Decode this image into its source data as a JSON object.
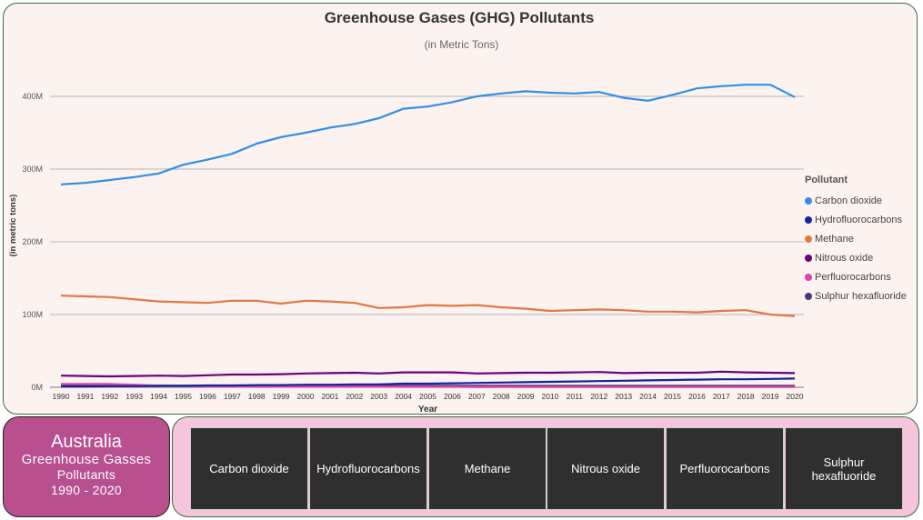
{
  "chart": {
    "title": "Greenhouse Gases (GHG) Pollutants",
    "subtitle": "(in Metric Tons)"
  },
  "chart_data": {
    "type": "line",
    "title": "Greenhouse Gases (GHG) Pollutants",
    "subtitle": "(in Metric Tons)",
    "xlabel": "Year",
    "ylabel": "(in metric tons)",
    "ylim": [
      0,
      420000000
    ],
    "yticks": [
      0,
      100000000,
      200000000,
      300000000,
      400000000
    ],
    "ytick_labels": [
      "0M",
      "100M",
      "200M",
      "300M",
      "400M"
    ],
    "grid": true,
    "legend_title": "Pollutant",
    "legend_position": "right",
    "x": [
      1990,
      1991,
      1992,
      1993,
      1994,
      1995,
      1996,
      1997,
      1998,
      1999,
      2000,
      2001,
      2002,
      2003,
      2004,
      2005,
      2006,
      2007,
      2008,
      2009,
      2010,
      2011,
      2012,
      2013,
      2014,
      2015,
      2016,
      2017,
      2018,
      2019,
      2020
    ],
    "series": [
      {
        "name": "Carbon dioxide",
        "color": "#2f8fe6",
        "values": [
          279000000,
          281000000,
          285000000,
          289000000,
          294000000,
          306000000,
          313000000,
          321000000,
          335000000,
          344000000,
          350000000,
          357000000,
          362000000,
          370000000,
          383000000,
          386000000,
          392000000,
          400000000,
          404000000,
          407000000,
          405000000,
          404000000,
          406000000,
          398000000,
          394000000,
          402000000,
          411000000,
          414000000,
          416000000,
          416000000,
          399000000
        ]
      },
      {
        "name": "Hydrofluorocarbons",
        "color": "#12239e",
        "values": [
          1000000,
          1000000,
          1500000,
          1500000,
          2000000,
          2000000,
          2500000,
          2500000,
          3000000,
          3000000,
          3500000,
          3500000,
          4000000,
          4000000,
          5000000,
          5000000,
          5500000,
          6000000,
          6500000,
          7000000,
          7500000,
          8000000,
          8500000,
          9000000,
          9500000,
          10000000,
          10500000,
          11000000,
          11000000,
          11500000,
          12000000
        ]
      },
      {
        "name": "Methane",
        "color": "#e0783f",
        "values": [
          126000000,
          125000000,
          124000000,
          121000000,
          118000000,
          117000000,
          116000000,
          119000000,
          119000000,
          115000000,
          119000000,
          118000000,
          116000000,
          109000000,
          110000000,
          113000000,
          112000000,
          113000000,
          110000000,
          108000000,
          105000000,
          106000000,
          107000000,
          106000000,
          104000000,
          104000000,
          103000000,
          105000000,
          106000000,
          100000000,
          98000000
        ]
      },
      {
        "name": "Nitrous oxide",
        "color": "#6b007b",
        "values": [
          16000000,
          15500000,
          15000000,
          15500000,
          16000000,
          15500000,
          16500000,
          17500000,
          17500000,
          18000000,
          19000000,
          19500000,
          20000000,
          19000000,
          20500000,
          20500000,
          20500000,
          19000000,
          19500000,
          20000000,
          20000000,
          20500000,
          21000000,
          19500000,
          20000000,
          20000000,
          20000000,
          21500000,
          20500000,
          20000000,
          19500000
        ]
      },
      {
        "name": "Perfluorocarbons",
        "color": "#e044a7",
        "values": [
          4500000,
          4500000,
          4500000,
          3500000,
          2000000,
          1500000,
          1000000,
          1000000,
          1000000,
          800000,
          800000,
          800000,
          800000,
          700000,
          600000,
          600000,
          600000,
          500000,
          500000,
          500000,
          400000,
          400000,
          400000,
          400000,
          400000,
          400000,
          400000,
          400000,
          400000,
          400000,
          400000
        ]
      },
      {
        "name": "Sulphur hexafluoride",
        "color": "#4b3a73",
        "values": [
          2000000,
          2000000,
          2000000,
          2000000,
          2000000,
          2000000,
          2000000,
          2000000,
          2000000,
          2000000,
          2000000,
          2000000,
          2000000,
          2000000,
          2000000,
          2000000,
          2000000,
          2000000,
          2000000,
          2000000,
          2000000,
          2000000,
          2000000,
          2000000,
          2000000,
          2000000,
          2000000,
          2000000,
          2000000,
          2000000,
          2000000
        ]
      }
    ]
  },
  "info": {
    "country": "Australia",
    "line1": "Greenhouse Gasses",
    "line2": "Pollutants",
    "line3": "1990 - 2020"
  },
  "slicer": {
    "buttons": [
      "Carbon dioxide",
      "Hydrofluorocarbons",
      "Methane",
      "Nitrous oxide",
      "Perfluorocarbons",
      "Sulphur hexafluoride"
    ]
  }
}
